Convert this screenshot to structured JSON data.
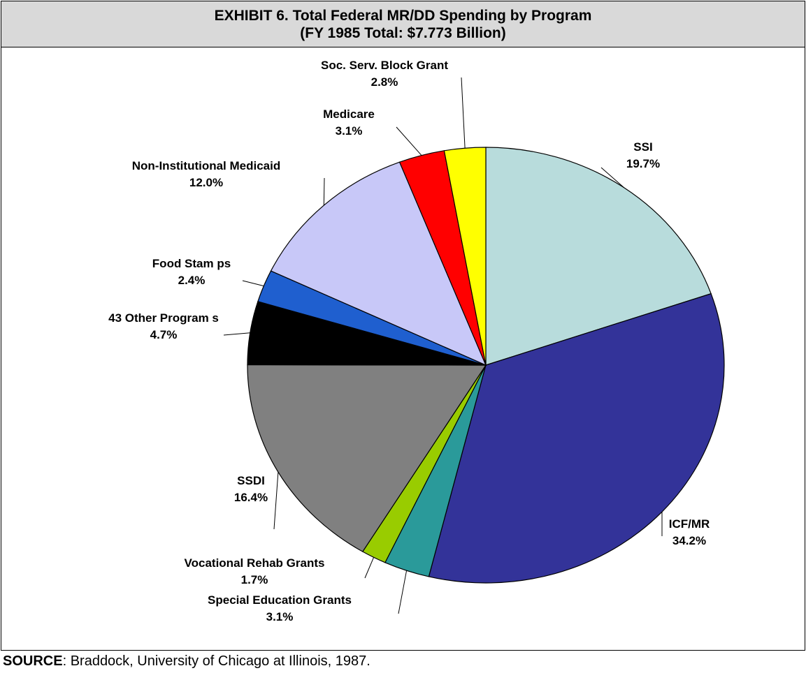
{
  "chart_data": {
    "type": "pie",
    "title": "EXHIBIT 6. Total Federal MR/DD Spending by Program",
    "subtitle": "(FY 1985 Total: $7.773 Billion)",
    "unit": "%",
    "slices": [
      {
        "name": "SSI",
        "label": "SSI",
        "value_label": "19.7%",
        "value": 19.7,
        "color": "#b8dcdc"
      },
      {
        "name": "ICF/MR",
        "label": "ICF/MR",
        "value_label": "34.2%",
        "value": 34.2,
        "color": "#333399"
      },
      {
        "name": "Special Education Grants",
        "label": "Special Education Grants",
        "value_label": "3.1%",
        "value": 3.1,
        "color": "#2a9a9a"
      },
      {
        "name": "Vocational Rehab Grants",
        "label": "Vocational Rehab Grants",
        "value_label": "1.7%",
        "value": 1.7,
        "color": "#99cc00"
      },
      {
        "name": "SSDI",
        "label": "SSDI",
        "value_label": "16.4%",
        "value": 16.4,
        "color": "#808080"
      },
      {
        "name": "43 Other Programs",
        "label": "43 Other Program s",
        "value_label": "4.7%",
        "value": 4.7,
        "color": "#000000"
      },
      {
        "name": "Food Stamps",
        "label": "Food Stam ps",
        "value_label": "2.4%",
        "value": 2.4,
        "color": "#1f5fcf"
      },
      {
        "name": "Non-Institutional Medicaid",
        "label": "Non-Institutional Medicaid",
        "value_label": "12.0%",
        "value": 12.0,
        "color": "#c8c8f8"
      },
      {
        "name": "Medicare",
        "label": "Medicare",
        "value_label": "3.1%",
        "value": 3.1,
        "color": "#ff0000"
      },
      {
        "name": "Soc. Serv. Block Grant",
        "label": "Soc. Serv. Block Grant",
        "value_label": "2.8%",
        "value": 2.8,
        "color": "#ffff00"
      }
    ],
    "start_angle": "12 o'clock",
    "direction": "clockwise",
    "legend": "none"
  },
  "source": {
    "label": "SOURCE",
    "text": ":  Braddock, University of Chicago at Illinois, 1987."
  }
}
